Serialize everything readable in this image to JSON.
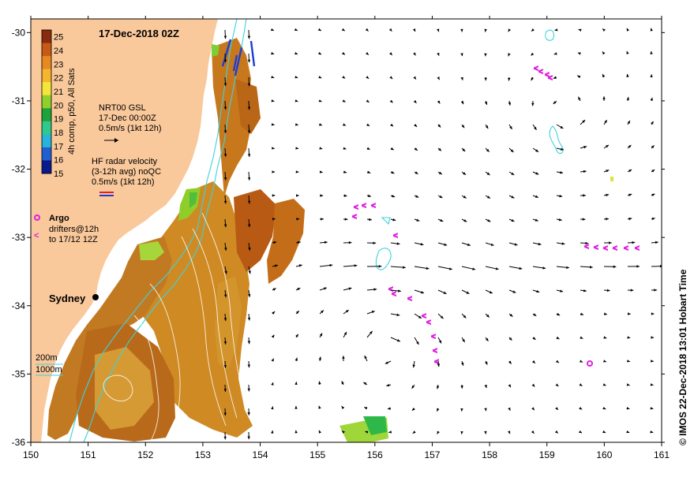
{
  "map": {
    "title": "17-Dec-2018 02Z",
    "credit": "© IMOS 22-Dec-2018 13:01 Hobart Time",
    "lon_range": [
      150,
      161
    ],
    "lat_range": [
      -36,
      -29.8
    ],
    "lon_ticks": [
      "150",
      "151",
      "152",
      "153",
      "154",
      "155",
      "156",
      "157",
      "158",
      "159",
      "160",
      "161"
    ],
    "lat_ticks": [
      "-30",
      "-31",
      "-32",
      "-33",
      "-34",
      "-35",
      "-36"
    ],
    "colors": {
      "land": "#f9c89b",
      "sea": "#ffffff",
      "vector": "#000000",
      "hf_radar": "#1a3fd6",
      "argo": "#e020e0",
      "drifter": "#e020e0",
      "contour": "#3cd2dc",
      "sst_contour": "#ffffff"
    }
  },
  "colorbar": {
    "label": "4h comp, p50, All Sats",
    "ticks": [
      "25",
      "24",
      "23",
      "22",
      "21",
      "20",
      "19",
      "18",
      "17",
      "16",
      "15"
    ],
    "min": 15,
    "max": 25.5,
    "colors": [
      "#0a1a8c",
      "#1f5fd0",
      "#26b4d8",
      "#2ec98c",
      "#1fa13c",
      "#8fd02a",
      "#f2e63a",
      "#f6b52e",
      "#e68a1f",
      "#c85a18",
      "#8a2a0e"
    ]
  },
  "legend": {
    "gsl_title": "NRT00 GSL",
    "gsl_time": "17-Dec 00:00Z",
    "gsl_scale": "0.5m/s (1kt 12h)",
    "hf_title": "HF radar velocity",
    "hf_sub": "(3-12h avg) noQC",
    "hf_scale": "0.5m/s (1kt 12h)",
    "argo_label": "Argo",
    "drifter_label_1": "drifters@12h",
    "drifter_label_2": "to 17/12 12Z",
    "depth_200": "200m",
    "depth_1000": "1000m"
  },
  "places": [
    {
      "name": "Sydney",
      "lon": 151.21,
      "lat": -33.87
    }
  ],
  "argo_floats": [
    {
      "lon": 159.75,
      "lat": -34.85
    }
  ]
}
